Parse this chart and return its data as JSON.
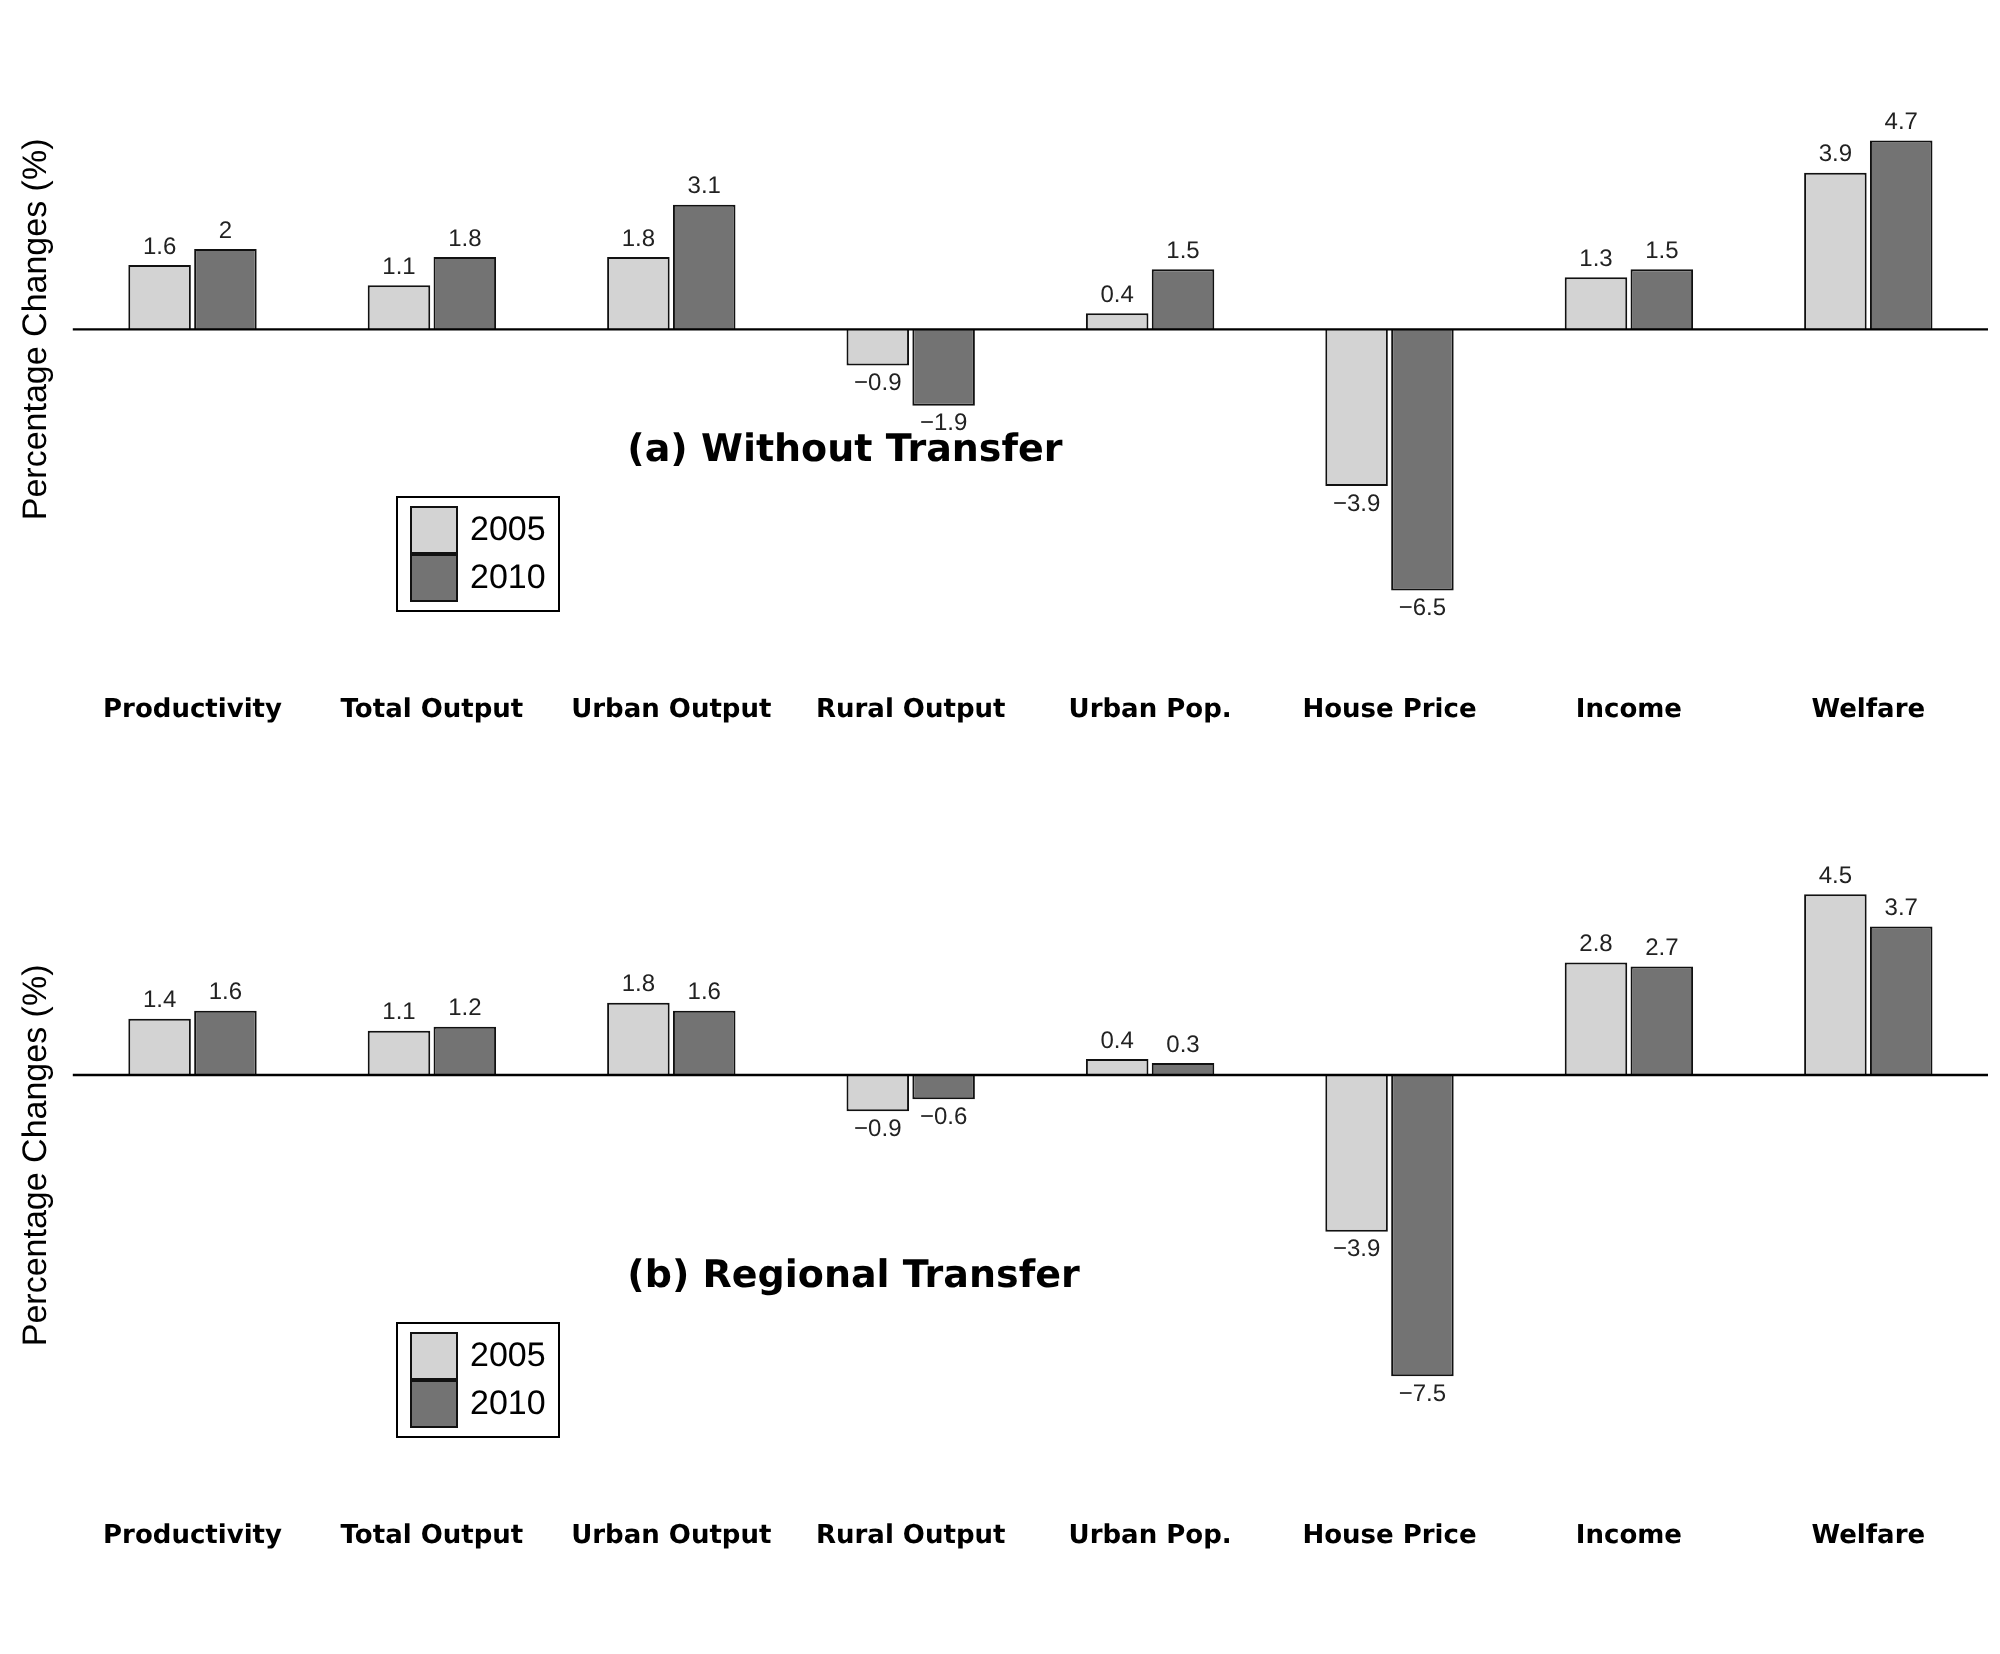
{
  "chart_data": [
    {
      "type": "bar",
      "title": "(a) Without Transfer",
      "ylabel": "Percentage Changes (%)",
      "categories": [
        "Productivity",
        "Total Output",
        "Urban Output",
        "Rural Output",
        "Urban Pop.",
        "House Price",
        "Income",
        "Welfare"
      ],
      "series": [
        {
          "name": "2005",
          "color": "#d3d3d3",
          "values": [
            1.6,
            1.1,
            1.8,
            -0.9,
            0.4,
            -3.9,
            1.3,
            3.9
          ]
        },
        {
          "name": "2010",
          "color": "#737373",
          "values": [
            2,
            1.8,
            3.1,
            -1.9,
            1.5,
            -6.5,
            1.5,
            4.7
          ]
        }
      ],
      "ref_lines": [
        {
          "axis": "y",
          "value": 0,
          "color": "#000000"
        }
      ],
      "grid": false,
      "legend": "bottom left",
      "data_labels": true
    },
    {
      "type": "bar",
      "title": "(b) Regional Transfer",
      "ylabel": "Percentage Changes (%)",
      "categories": [
        "Productivity",
        "Total Output",
        "Urban Output",
        "Rural Output",
        "Urban Pop.",
        "House Price",
        "Income",
        "Welfare"
      ],
      "series": [
        {
          "name": "2005",
          "color": "#d3d3d3",
          "values": [
            1.4,
            1.1,
            1.8,
            -0.9,
            0.4,
            -3.9,
            2.8,
            4.5
          ]
        },
        {
          "name": "2010",
          "color": "#737373",
          "values": [
            1.6,
            1.2,
            1.6,
            -0.6,
            0.3,
            -7.5,
            2.7,
            3.7
          ]
        }
      ],
      "ref_lines": [
        {
          "axis": "y",
          "value": 0,
          "color": "#000000"
        }
      ],
      "grid": false,
      "legend": "bottom left",
      "data_labels": true
    }
  ]
}
